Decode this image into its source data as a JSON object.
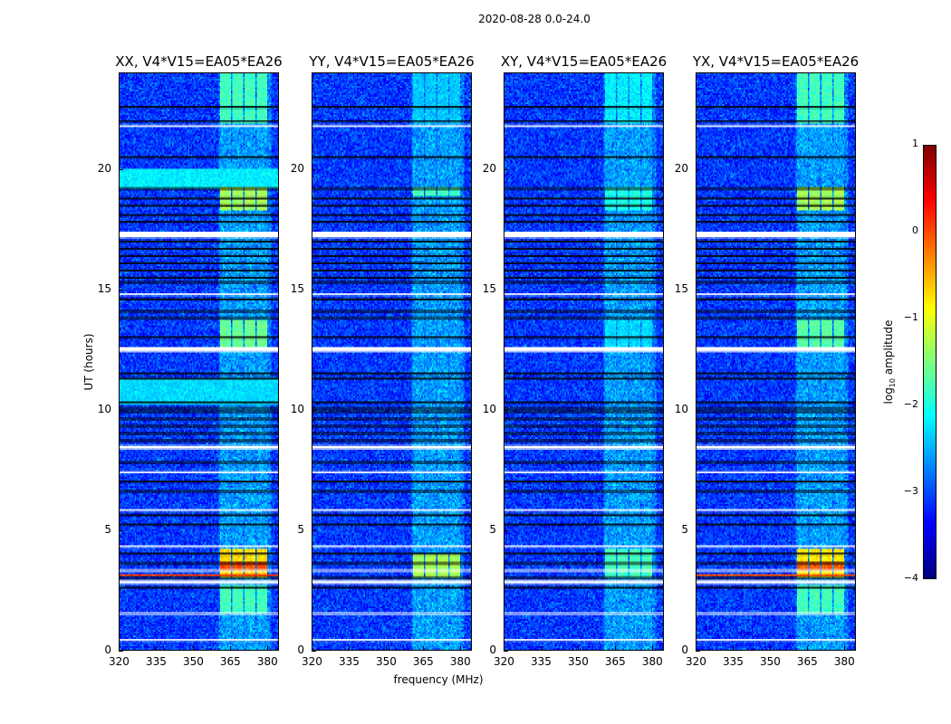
{
  "chart_data": {
    "type": "heatmap",
    "title": "2020-08-28 0.0-24.0",
    "xlabel": "frequency (MHz)",
    "ylabel": "UT (hours)",
    "xlim": [
      320,
      384.8
    ],
    "ylim": [
      0,
      24
    ],
    "xticks": [
      320,
      335,
      350,
      365,
      380
    ],
    "yticks": [
      0,
      5,
      10,
      15,
      20
    ],
    "colorbar": {
      "label_main": "log",
      "label_sub": "10",
      "label_tail": " amplitude",
      "range": [
        -4,
        1
      ],
      "ticks": [
        1,
        0,
        -1,
        -2,
        -3,
        -4
      ],
      "tick_labels": [
        "1",
        "0",
        "−1",
        "−2",
        "−3",
        "−4"
      ],
      "colormap": "jet"
    },
    "background_level": -3.1,
    "rfi_band_mhz": [
      360.5,
      382
    ],
    "rfi_subbands_mhz": [
      [
        361,
        365.5
      ],
      [
        366,
        370.5
      ],
      [
        371,
        375.5
      ],
      [
        376,
        380.5
      ]
    ],
    "flagged_white_hours": [
      0.4,
      1.5,
      [
        2.75,
        2.9
      ],
      3.3,
      4.3,
      5.8,
      7.4,
      [
        8.35,
        8.5
      ],
      [
        12.4,
        12.6
      ],
      14.8,
      [
        17.15,
        17.4
      ],
      21.8
    ],
    "flagged_black_hours": [
      2.6,
      3.0,
      3.6,
      4.0,
      5.2,
      5.6,
      6.6,
      7.0,
      7.8,
      8.7,
      9.0,
      9.3,
      9.6,
      9.9,
      10.05,
      10.3,
      11.3,
      11.5,
      13.0,
      13.8,
      14.1,
      14.6,
      15.3,
      15.5,
      15.8,
      16.1,
      16.4,
      16.7,
      17.0,
      17.8,
      18.1,
      18.5,
      18.8,
      19.2,
      20.5,
      22.0,
      22.6
    ],
    "panels": [
      {
        "title": "XX, V4*V15=EA05*EA26",
        "events": [
          {
            "hours": [
              1.5,
              2.7
            ],
            "level": -1.8,
            "freq": "subbands"
          },
          {
            "hours": [
              3.0,
              4.2
            ],
            "level": -0.7,
            "freq": "subbands"
          },
          {
            "hours": [
              3.3,
              3.7
            ],
            "level": 0.0,
            "freq": "subbands"
          },
          {
            "hours": [
              12.5,
              13.7
            ],
            "level": -1.6,
            "freq": "subbands"
          },
          {
            "hours": [
              18.3,
              19.3
            ],
            "level": -1.3,
            "freq": "subbands"
          },
          {
            "hours": [
              21.9,
              24.0
            ],
            "level": -1.8,
            "freq": "subbands"
          },
          {
            "hours": [
              3.08,
              3.14
            ],
            "level": 0.1,
            "freq": "all"
          },
          {
            "hours": [
              19.2,
              20.0
            ],
            "level": -2.2,
            "freq": "all"
          },
          {
            "hours": [
              10.2,
              11.3
            ],
            "level": -2.3,
            "freq": "all"
          }
        ]
      },
      {
        "title": "YY, V4*V15=EA05*EA26",
        "events": [
          {
            "hours": [
              3.0,
              4.0
            ],
            "level": -1.3,
            "freq": "subbands"
          },
          {
            "hours": [
              18.9,
              19.3
            ],
            "level": -1.8,
            "freq": "subbands"
          },
          {
            "hours": [
              21.9,
              24.0
            ],
            "level": -2.4,
            "freq": "subbands"
          }
        ]
      },
      {
        "title": "XY, V4*V15=EA05*EA26",
        "events": [
          {
            "hours": [
              3.0,
              4.2
            ],
            "level": -1.8,
            "freq": "subbands"
          },
          {
            "hours": [
              12.5,
              13.7
            ],
            "level": -2.3,
            "freq": "subbands"
          },
          {
            "hours": [
              18.3,
              19.3
            ],
            "level": -2.0,
            "freq": "subbands"
          },
          {
            "hours": [
              21.9,
              24.0
            ],
            "level": -2.2,
            "freq": "subbands"
          }
        ]
      },
      {
        "title": "YX, V4*V15=EA05*EA26",
        "events": [
          {
            "hours": [
              1.5,
              2.7
            ],
            "level": -1.8,
            "freq": "subbands"
          },
          {
            "hours": [
              3.0,
              4.2
            ],
            "level": -0.8,
            "freq": "subbands"
          },
          {
            "hours": [
              3.3,
              3.7
            ],
            "level": -0.1,
            "freq": "subbands"
          },
          {
            "hours": [
              12.5,
              13.7
            ],
            "level": -1.7,
            "freq": "subbands"
          },
          {
            "hours": [
              18.3,
              19.3
            ],
            "level": -1.3,
            "freq": "subbands"
          },
          {
            "hours": [
              21.9,
              24.0
            ],
            "level": -1.8,
            "freq": "subbands"
          },
          {
            "hours": [
              3.08,
              3.14
            ],
            "level": 0.0,
            "freq": "all"
          }
        ]
      }
    ]
  }
}
